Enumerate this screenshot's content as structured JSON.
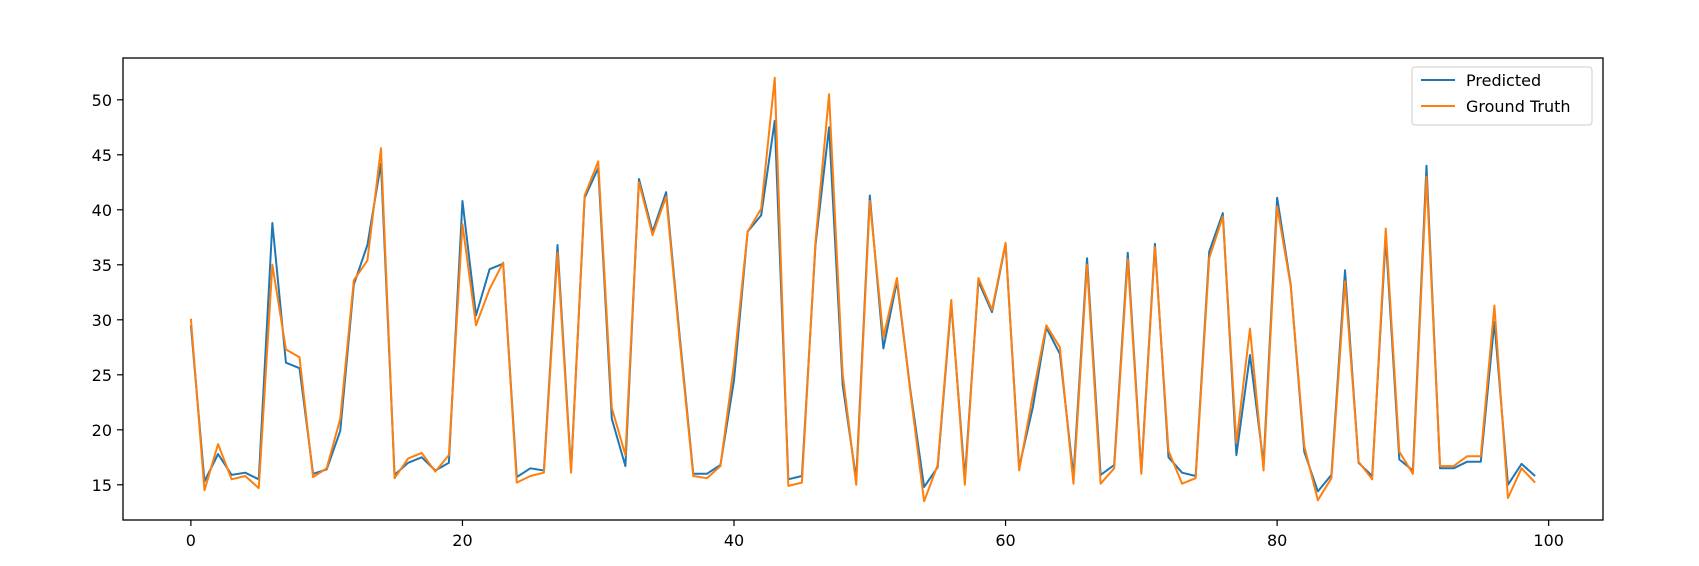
{
  "chart_data": {
    "type": "line",
    "title": "",
    "xlabel": "",
    "ylabel": "",
    "xlim": [
      -5,
      104
    ],
    "ylim": [
      11.8,
      53.8
    ],
    "xticks": [
      0,
      20,
      40,
      60,
      80,
      100
    ],
    "yticks": [
      15,
      20,
      25,
      30,
      35,
      40,
      45,
      50
    ],
    "grid": false,
    "legend_position": "top-right",
    "x": [
      0,
      1,
      2,
      3,
      4,
      5,
      6,
      7,
      8,
      9,
      10,
      11,
      12,
      13,
      14,
      15,
      16,
      17,
      18,
      19,
      20,
      21,
      22,
      23,
      24,
      25,
      26,
      27,
      28,
      29,
      30,
      31,
      32,
      33,
      34,
      35,
      36,
      37,
      38,
      39,
      40,
      41,
      42,
      43,
      44,
      45,
      46,
      47,
      48,
      49,
      50,
      51,
      52,
      53,
      54,
      55,
      56,
      57,
      58,
      59,
      60,
      61,
      62,
      63,
      64,
      65,
      66,
      67,
      68,
      69,
      70,
      71,
      72,
      73,
      74,
      75,
      76,
      77,
      78,
      79,
      80,
      81,
      82,
      83,
      84,
      85,
      86,
      87,
      88,
      89,
      90,
      91,
      92,
      93,
      94,
      95,
      96,
      97,
      98,
      99
    ],
    "series": [
      {
        "name": "Predicted",
        "color": "#1f77b4",
        "values": [
          29.5,
          15.3,
          17.8,
          15.9,
          16.1,
          15.5,
          38.8,
          26.1,
          25.6,
          16.0,
          16.4,
          19.9,
          33.2,
          36.8,
          44.2,
          15.9,
          17.0,
          17.5,
          16.3,
          17.0,
          40.8,
          30.4,
          34.6,
          35.1,
          15.7,
          16.5,
          16.3,
          36.8,
          16.3,
          41.1,
          43.8,
          21.0,
          16.7,
          42.8,
          38.0,
          41.6,
          28.5,
          16.0,
          16.0,
          16.8,
          24.5,
          38.0,
          39.5,
          48.1,
          15.5,
          15.8,
          36.8,
          47.5,
          24.1,
          15.5,
          41.3,
          27.4,
          33.5,
          23.5,
          14.8,
          16.6,
          31.5,
          15.6,
          33.5,
          30.7,
          36.9,
          16.6,
          22.0,
          29.3,
          26.9,
          15.8,
          35.6,
          15.9,
          16.8,
          36.1,
          16.2,
          36.9,
          17.5,
          16.1,
          15.8,
          36.2,
          39.7,
          17.7,
          26.8,
          16.9,
          41.1,
          33.2,
          18.0,
          14.4,
          15.9,
          34.5,
          17.0,
          15.8,
          37.5,
          17.3,
          16.3,
          44.0,
          16.5,
          16.5,
          17.1,
          17.1,
          29.8,
          15.0,
          16.9,
          15.8
        ]
      },
      {
        "name": "Ground Truth",
        "color": "#ff7f0e",
        "values": [
          30.1,
          14.5,
          18.7,
          15.5,
          15.8,
          14.7,
          35.0,
          27.3,
          26.6,
          15.7,
          16.5,
          21.0,
          33.6,
          35.4,
          45.6,
          15.6,
          17.4,
          17.9,
          16.2,
          17.7,
          38.7,
          29.5,
          32.8,
          35.2,
          15.2,
          15.8,
          16.1,
          36.1,
          16.1,
          41.3,
          44.4,
          22.0,
          17.7,
          42.5,
          37.7,
          41.2,
          28.1,
          15.8,
          15.6,
          16.7,
          26.0,
          38.0,
          40.1,
          52.0,
          14.9,
          15.2,
          37.1,
          50.5,
          25.1,
          15.0,
          40.8,
          28.4,
          33.8,
          23.3,
          13.5,
          16.8,
          31.8,
          15.0,
          33.8,
          30.9,
          37.0,
          16.3,
          23.1,
          29.5,
          27.5,
          15.1,
          35.0,
          15.1,
          16.5,
          35.5,
          16.0,
          36.6,
          18.1,
          15.1,
          15.6,
          35.6,
          39.4,
          18.8,
          29.2,
          16.3,
          40.3,
          33.1,
          18.5,
          13.6,
          15.6,
          33.5,
          17.1,
          15.5,
          38.3,
          18.0,
          16.0,
          43.0,
          16.7,
          16.7,
          17.6,
          17.6,
          31.3,
          13.8,
          16.5,
          15.2
        ]
      }
    ]
  }
}
